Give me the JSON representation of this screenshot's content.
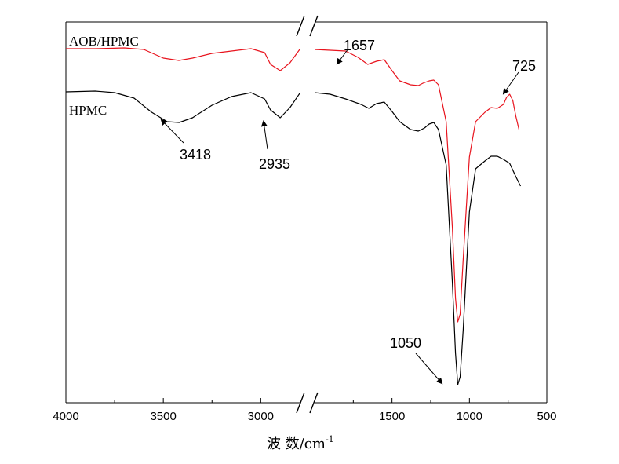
{
  "chart_data": {
    "type": "line",
    "title": "",
    "xlabel": "波 数/cm",
    "xlabel_superscript": "-1",
    "ylabel": "",
    "xlim": [
      4000,
      500
    ],
    "axis_break": {
      "from": 2800,
      "to": 2000
    },
    "xticks": [
      4000,
      3500,
      3000,
      1500,
      1000,
      500
    ],
    "xtick_labels": [
      "4000",
      "3500",
      "3000",
      "1500",
      "1000",
      "500"
    ],
    "grid": false,
    "series": [
      {
        "name": "AOB/HPMC",
        "color": "#e8141e",
        "points": [
          [
            4000,
            62
          ],
          [
            3850,
            62
          ],
          [
            3700,
            61
          ],
          [
            3600,
            63
          ],
          [
            3500,
            74
          ],
          [
            3420,
            77
          ],
          [
            3350,
            74
          ],
          [
            3250,
            68
          ],
          [
            3150,
            65
          ],
          [
            3050,
            62
          ],
          [
            2980,
            67
          ],
          [
            2950,
            82
          ],
          [
            2900,
            90
          ],
          [
            2850,
            80
          ],
          [
            2800,
            63
          ],
          [
            2000,
            63
          ],
          [
            1900,
            64
          ],
          [
            1800,
            65
          ],
          [
            1720,
            73
          ],
          [
            1657,
            82
          ],
          [
            1600,
            78
          ],
          [
            1550,
            76
          ],
          [
            1500,
            90
          ],
          [
            1450,
            103
          ],
          [
            1380,
            108
          ],
          [
            1330,
            109
          ],
          [
            1300,
            106
          ],
          [
            1260,
            103
          ],
          [
            1230,
            102
          ],
          [
            1200,
            108
          ],
          [
            1150,
            155
          ],
          [
            1110,
            290
          ],
          [
            1090,
            380
          ],
          [
            1075,
            410
          ],
          [
            1060,
            400
          ],
          [
            1040,
            330
          ],
          [
            1000,
            200
          ],
          [
            960,
            155
          ],
          [
            900,
            143
          ],
          [
            860,
            137
          ],
          [
            820,
            138
          ],
          [
            780,
            133
          ],
          [
            760,
            124
          ],
          [
            740,
            120
          ],
          [
            720,
            128
          ],
          [
            700,
            148
          ],
          [
            680,
            165
          ]
        ]
      },
      {
        "name": "HPMC",
        "color": "#000000",
        "points": [
          [
            4000,
            117
          ],
          [
            3850,
            116
          ],
          [
            3750,
            118
          ],
          [
            3650,
            125
          ],
          [
            3560,
            143
          ],
          [
            3480,
            155
          ],
          [
            3418,
            156
          ],
          [
            3350,
            150
          ],
          [
            3250,
            134
          ],
          [
            3150,
            123
          ],
          [
            3050,
            118
          ],
          [
            2980,
            126
          ],
          [
            2950,
            140
          ],
          [
            2900,
            150
          ],
          [
            2850,
            137
          ],
          [
            2800,
            119
          ],
          [
            2000,
            118
          ],
          [
            1900,
            120
          ],
          [
            1800,
            126
          ],
          [
            1700,
            133
          ],
          [
            1650,
            138
          ],
          [
            1600,
            132
          ],
          [
            1550,
            130
          ],
          [
            1500,
            142
          ],
          [
            1450,
            155
          ],
          [
            1380,
            165
          ],
          [
            1330,
            167
          ],
          [
            1290,
            163
          ],
          [
            1260,
            158
          ],
          [
            1230,
            156
          ],
          [
            1200,
            165
          ],
          [
            1150,
            210
          ],
          [
            1110,
            360
          ],
          [
            1090,
            450
          ],
          [
            1075,
            490
          ],
          [
            1060,
            480
          ],
          [
            1040,
            420
          ],
          [
            1000,
            270
          ],
          [
            960,
            215
          ],
          [
            900,
            205
          ],
          [
            860,
            199
          ],
          [
            820,
            199
          ],
          [
            780,
            203
          ],
          [
            740,
            208
          ],
          [
            700,
            225
          ],
          [
            670,
            237
          ]
        ]
      }
    ],
    "annotations": [
      {
        "text": "1657",
        "x": 1657
      },
      {
        "text": "725",
        "x": 725
      },
      {
        "text": "3418",
        "x": 3418
      },
      {
        "text": "2935",
        "x": 2935
      },
      {
        "text": "1050",
        "x": 1050
      }
    ]
  }
}
